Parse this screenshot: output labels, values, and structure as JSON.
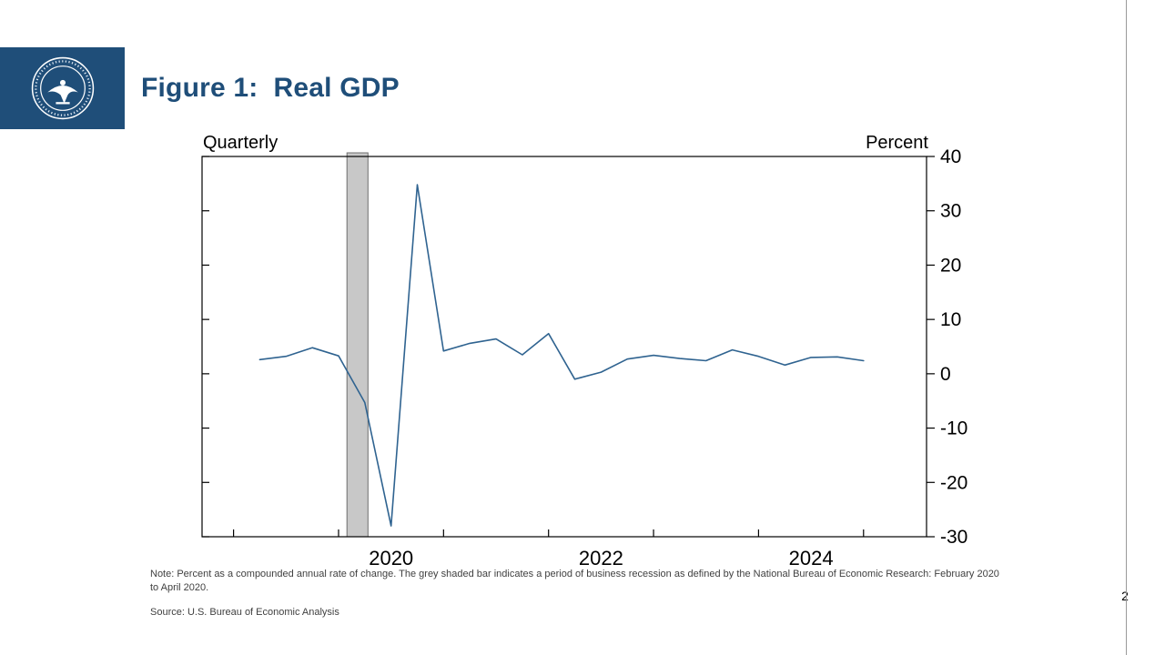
{
  "slide": {
    "title": "Figure 1:  Real GDP",
    "page_number": "2",
    "note": "Note: Percent as a compounded annual rate of change. The grey shaded bar indicates a period of business recession as defined by the National Bureau of Economic Research: February 2020 to April 2020.",
    "source": "Source: U.S. Bureau of Economic Analysis",
    "colors": {
      "accent_blue": "#1f4e79",
      "line": "#2f6390",
      "recession_fill": "#c8c8c8",
      "recession_border": "#6e6e6e"
    }
  },
  "chart_data": {
    "type": "line",
    "title": "Real GDP",
    "frequency_label": "Quarterly",
    "unit_label": "Percent",
    "x_range": [
      2018.7,
      2025.6
    ],
    "y_range": [
      -30,
      40
    ],
    "y_ticks": [
      40,
      30,
      20,
      10,
      0,
      -10,
      -20,
      -30
    ],
    "x_ticks": [
      2019,
      2020,
      2021,
      2022,
      2023,
      2024,
      2025
    ],
    "x_labels": [
      {
        "text": "2020",
        "x": 2020.5
      },
      {
        "text": "2022",
        "x": 2022.5
      },
      {
        "text": "2024",
        "x": 2024.5
      }
    ],
    "grid": false,
    "legend": "none",
    "recession_band": {
      "start": 2020.08,
      "end": 2020.28,
      "start_label": "February 2020",
      "end_label": "April 2020"
    },
    "series": [
      {
        "name": "Real GDP, compounded annual rate of change (percent)",
        "quarters": [
          "2019 Q1",
          "2019 Q2",
          "2019 Q3",
          "2019 Q4",
          "2020 Q1",
          "2020 Q2",
          "2020 Q3",
          "2020 Q4",
          "2021 Q1",
          "2021 Q2",
          "2021 Q3",
          "2021 Q4",
          "2022 Q1",
          "2022 Q2",
          "2022 Q3",
          "2022 Q4",
          "2023 Q1",
          "2023 Q2",
          "2023 Q3",
          "2023 Q4",
          "2024 Q1",
          "2024 Q2",
          "2024 Q3",
          "2024 Q4"
        ],
        "x": [
          2019.25,
          2019.5,
          2019.75,
          2020.0,
          2020.25,
          2020.5,
          2020.75,
          2021.0,
          2021.25,
          2021.5,
          2021.75,
          2022.0,
          2022.25,
          2022.5,
          2022.75,
          2023.0,
          2023.25,
          2023.5,
          2023.75,
          2024.0,
          2024.25,
          2024.5,
          2024.75,
          2025.0
        ],
        "values": [
          2.6,
          3.2,
          4.8,
          3.3,
          -5.3,
          -28.0,
          34.8,
          4.2,
          5.6,
          6.4,
          3.5,
          7.4,
          -1.0,
          0.3,
          2.7,
          3.4,
          2.8,
          2.4,
          4.4,
          3.2,
          1.6,
          3.0,
          3.1,
          2.4
        ]
      }
    ]
  }
}
